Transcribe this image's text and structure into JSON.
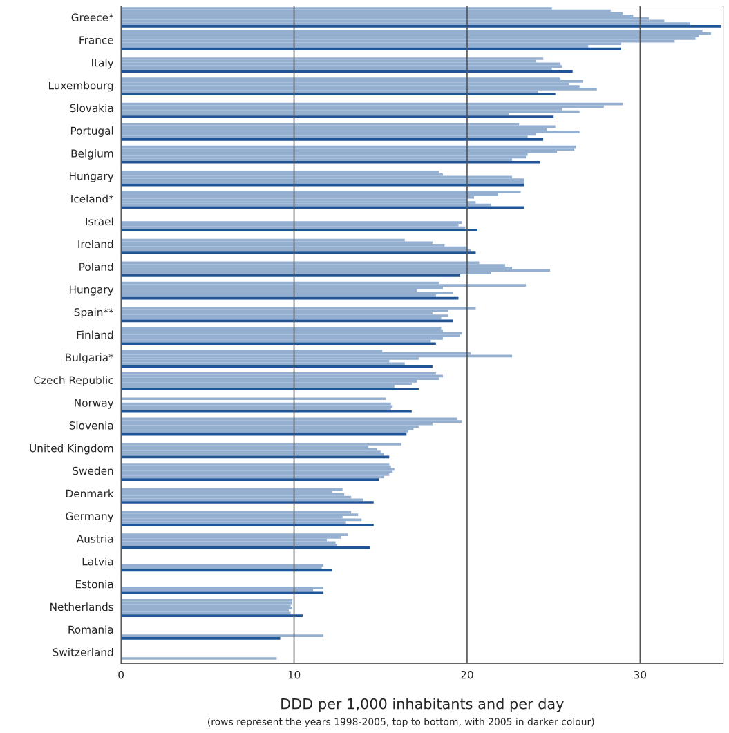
{
  "chart_data": {
    "type": "bar",
    "orientation": "horizontal",
    "xlabel": "DDD per 1,000 inhabitants and per day",
    "annotations": [
      "(rows represent the years 1998-2005, top to bottom, with 2005 in darker colour)"
    ],
    "categories": [
      "Greece*",
      "France",
      "Italy",
      "Luxembourg",
      "Slovakia",
      "Portugal",
      "Belgium",
      "Hungary",
      "Iceland*",
      "Israel",
      "Ireland",
      "Poland",
      "Hungary",
      "Spain**",
      "Finland",
      "Bulgaria*",
      "Czech Republic",
      "Norway",
      "Slovenia",
      "United Kingdom",
      "Sweden",
      "Denmark",
      "Germany",
      "Austria",
      "Latvia",
      "Estonia",
      "Netherlands",
      "Romania",
      "Switzerland"
    ],
    "series": [
      {
        "color": "#94afd0",
        "values": [
          24.9,
          33.6,
          null,
          null,
          null,
          null,
          null,
          null,
          null,
          null,
          null,
          null,
          null,
          null,
          null,
          null,
          null,
          null,
          null,
          null,
          null,
          null,
          null,
          null,
          null,
          null,
          null,
          null,
          null
        ]
      },
      {
        "color": "#94afd0",
        "values": [
          28.3,
          34.1,
          null,
          25.4,
          null,
          23.0,
          26.3,
          null,
          23.1,
          null,
          null,
          null,
          18.4,
          null,
          18.5,
          15.1,
          18.2,
          null,
          19.4,
          null,
          15.5,
          null,
          null,
          null,
          null,
          null,
          9.9,
          null,
          null
        ]
      },
      {
        "color": "#94afd0",
        "values": [
          29.0,
          33.4,
          24.4,
          26.7,
          29.0,
          25.1,
          26.2,
          18.4,
          21.8,
          null,
          16.4,
          20.7,
          23.4,
          20.5,
          18.6,
          20.2,
          18.6,
          15.3,
          19.7,
          16.2,
          15.6,
          12.8,
          13.3,
          13.1,
          null,
          null,
          9.9,
          null,
          null
        ]
      },
      {
        "color": "#94afd0",
        "values": [
          29.6,
          33.2,
          24.0,
          25.9,
          27.9,
          24.6,
          25.2,
          18.6,
          20.4,
          null,
          18.0,
          22.2,
          18.6,
          18.9,
          19.7,
          22.6,
          18.4,
          null,
          18.0,
          14.3,
          15.8,
          12.2,
          13.7,
          12.7,
          null,
          null,
          9.8,
          null,
          null
        ]
      },
      {
        "color": "#94afd0",
        "values": [
          30.5,
          32.0,
          25.4,
          26.5,
          25.5,
          26.5,
          23.5,
          22.6,
          20.0,
          19.7,
          18.7,
          22.6,
          17.1,
          18.0,
          19.6,
          17.2,
          17.1,
          15.6,
          17.2,
          14.8,
          15.7,
          12.9,
          12.8,
          11.9,
          null,
          null,
          9.9,
          null,
          null
        ]
      },
      {
        "color": "#94afd0",
        "values": [
          31.4,
          28.9,
          25.5,
          27.5,
          26.5,
          24.0,
          23.4,
          23.3,
          20.5,
          19.5,
          20.0,
          24.8,
          19.2,
          18.9,
          18.6,
          15.5,
          16.8,
          15.7,
          16.9,
          15.0,
          15.5,
          13.3,
          13.9,
          12.4,
          11.7,
          11.7,
          9.7,
          null,
          null
        ]
      },
      {
        "color": "#94afd0",
        "values": [
          32.9,
          27.0,
          24.9,
          24.1,
          22.4,
          23.5,
          22.6,
          23.3,
          21.4,
          19.9,
          20.2,
          21.4,
          18.2,
          18.5,
          17.9,
          16.4,
          15.8,
          15.6,
          16.6,
          15.2,
          15.2,
          14.0,
          13.0,
          12.5,
          11.6,
          11.1,
          9.8,
          11.7,
          9.0
        ]
      },
      {
        "color": "#1f5597",
        "values": [
          34.7,
          28.9,
          26.1,
          25.1,
          25.0,
          24.4,
          24.2,
          23.3,
          23.3,
          20.6,
          20.5,
          19.6,
          19.5,
          19.2,
          18.2,
          18.0,
          17.2,
          16.8,
          16.5,
          15.5,
          14.9,
          14.6,
          14.6,
          14.4,
          12.2,
          11.7,
          10.5,
          9.2,
          null
        ]
      }
    ],
    "xlim": [
      0,
      34.8
    ],
    "xticks": [
      0,
      10,
      20,
      30
    ],
    "grid": "x",
    "legend": false
  }
}
